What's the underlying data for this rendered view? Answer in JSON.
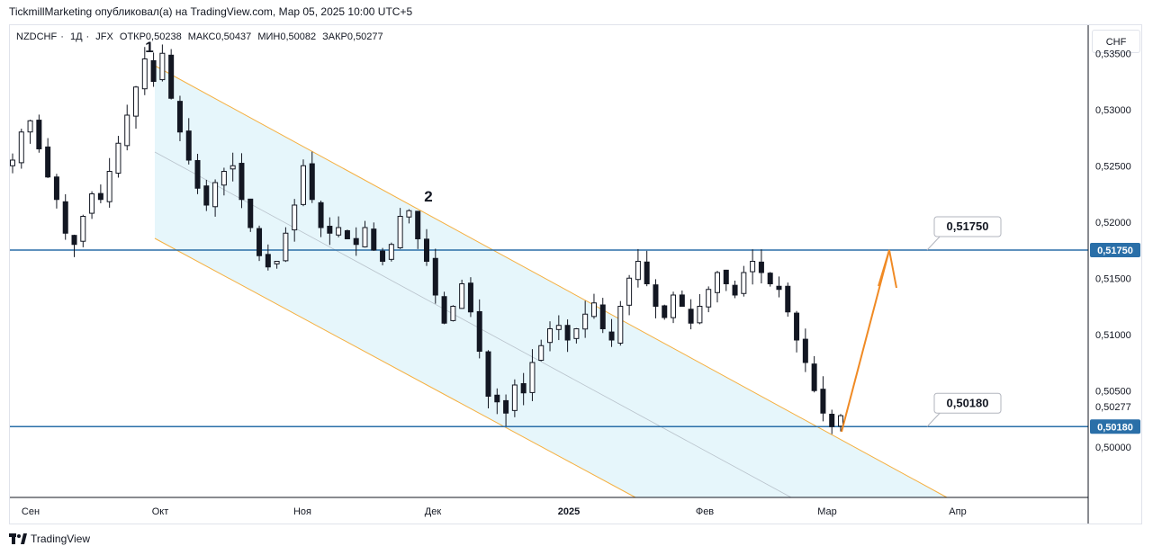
{
  "header": {
    "published_text": "TickmillMarketing опубликовал(а) на TradingView.com, Мар 05, 2025 10:00 UTC+5"
  },
  "symbol_bar": {
    "symbol": "NZDCHF",
    "timeframe": "1Д",
    "exchange": "JFX",
    "open_label": "ОТКР",
    "open": "0,50238",
    "high_label": "МАКС",
    "high": "0,50437",
    "low_label": "МИН",
    "low": "0,50082",
    "close_label": "ЗАКР",
    "close": "0,50277"
  },
  "currency_button": "CHF",
  "footer": {
    "brand": "TradingView"
  },
  "colors": {
    "channel_fill": "#e6f6fb",
    "channel_border": "#f5b041",
    "level_line": "#2a6fa8",
    "arrow": "#f08a24",
    "up_candle": "#ffffff",
    "down_candle": "#131722"
  },
  "chart_data": {
    "type": "candlestick",
    "x_ticks": [
      "Сен",
      "Окт",
      "Ноя",
      "Дек",
      "2025",
      "Фев",
      "Мар",
      "Апр"
    ],
    "y_ticks": [
      "0,53500",
      "0,53000",
      "0,52500",
      "0,52000",
      "0,51500",
      "0,51000",
      "0,50500",
      "0,50000"
    ],
    "y_range": [
      0.4955,
      0.5375
    ],
    "levels": [
      {
        "value": 0.5175,
        "label": "0,51750"
      },
      {
        "value": 0.5018,
        "label": "0,50180"
      }
    ],
    "last_price": {
      "value": 0.50277,
      "label": "0,50277"
    },
    "wave_labels": [
      "1",
      "2"
    ],
    "forecast_target": 0.5175,
    "candles_close_path": [
      0.5255,
      0.528,
      0.529,
      0.5265,
      0.524,
      0.522,
      0.519,
      0.518,
      0.5205,
      0.5225,
      0.522,
      0.5245,
      0.527,
      0.5295,
      0.532,
      0.5345,
      0.5325,
      0.535,
      0.531,
      0.528,
      0.5255,
      0.523,
      0.5215,
      0.5235,
      0.5245,
      0.525,
      0.522,
      0.5195,
      0.517,
      0.516,
      0.5165,
      0.519,
      0.5215,
      0.525,
      0.522,
      0.5195,
      0.519,
      0.5195,
      0.5185,
      0.518,
      0.5195,
      0.5175,
      0.5165,
      0.518,
      0.5205,
      0.521,
      0.5185,
      0.5165,
      0.5135,
      0.511,
      0.5125,
      0.5145,
      0.512,
      0.5085,
      0.5045,
      0.504,
      0.503,
      0.5055,
      0.5048,
      0.5075,
      0.509,
      0.5105,
      0.5108,
      0.5095,
      0.5105,
      0.5118,
      0.5128,
      0.5105,
      0.5095,
      0.5125,
      0.515,
      0.5165,
      0.5145,
      0.5125,
      0.5115,
      0.5135,
      0.5125,
      0.511,
      0.5125,
      0.514,
      0.5155,
      0.5145,
      0.5135,
      0.5155,
      0.5165,
      0.5155,
      0.5145,
      0.514,
      0.512,
      0.5095,
      0.5075,
      0.505,
      0.503,
      0.5018,
      0.50277
    ]
  }
}
